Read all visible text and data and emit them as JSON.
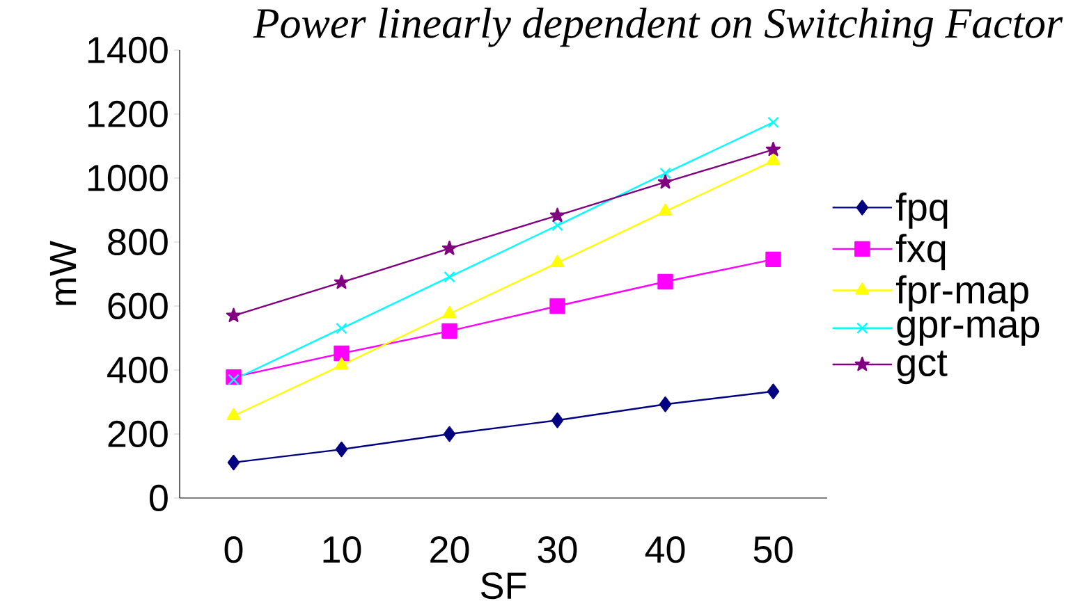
{
  "chart_data": {
    "type": "line",
    "title": "Power linearly dependent on Switching Factor",
    "xlabel": "SF",
    "ylabel": "mW",
    "categories": [
      "0",
      "10",
      "20",
      "30",
      "40",
      "50"
    ],
    "series": [
      {
        "name": "fpq",
        "color": "#000080",
        "marker": "diamond",
        "values": [
          111,
          152,
          200,
          243,
          293,
          333
        ]
      },
      {
        "name": "fxq",
        "color": "#ff00ff",
        "marker": "square",
        "values": [
          378,
          452,
          522,
          600,
          676,
          746
        ]
      },
      {
        "name": "fpr-map",
        "color": "#ffff00",
        "marker": "triangle",
        "values": [
          257,
          415,
          576,
          735,
          896,
          1054
        ]
      },
      {
        "name": "gpr-map",
        "color": "#00ffff",
        "marker": "cross",
        "values": [
          370,
          530,
          691,
          852,
          1015,
          1174
        ]
      },
      {
        "name": "gct",
        "color": "#800080",
        "marker": "star",
        "values": [
          570,
          674,
          780,
          883,
          987,
          1089
        ]
      }
    ],
    "ylim": [
      0,
      1400
    ],
    "yticks": [
      0,
      200,
      400,
      600,
      800,
      1000,
      1200,
      1400
    ],
    "grid": false,
    "legend": "right"
  }
}
